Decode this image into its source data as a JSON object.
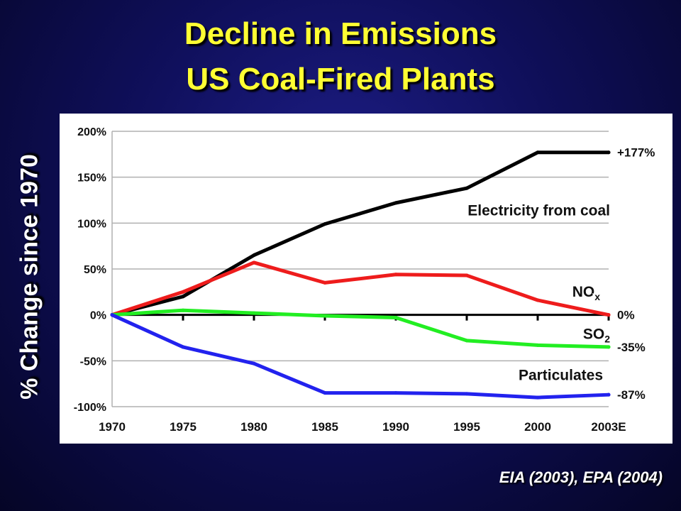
{
  "title_line1": "Decline in Emissions",
  "title_line2": "US Coal-Fired Plants",
  "y_axis_title": "% Change since 1970",
  "source": "EIA (2003), EPA (2004)",
  "chart_data": {
    "type": "line",
    "x": [
      "1970",
      "1975",
      "1980",
      "1985",
      "1990",
      "1995",
      "2000",
      "2003E"
    ],
    "yticks": [
      "200%",
      "150%",
      "100%",
      "50%",
      "0%",
      "-50%",
      "-100%"
    ],
    "ylim": [
      -100,
      200
    ],
    "grid": true,
    "series": [
      {
        "name": "Electricity from coal",
        "color": "#000000",
        "values": [
          0,
          20,
          65,
          99,
          122,
          138,
          177,
          177
        ],
        "end_label": "+177%"
      },
      {
        "name": "NOx",
        "name_main": "NO",
        "name_sub": "x",
        "color": "#ee1c1c",
        "values": [
          0,
          25,
          57,
          35,
          44,
          43,
          16,
          0
        ],
        "end_label": "0%"
      },
      {
        "name": "SO2",
        "name_main": "SO",
        "name_sub": "2",
        "color": "#22ee22",
        "values": [
          0,
          5,
          2,
          -1,
          -3,
          -28,
          -33,
          -35
        ],
        "end_label": "-35%"
      },
      {
        "name": "Particulates",
        "color": "#2222ee",
        "values": [
          0,
          -35,
          -53,
          -85,
          -85,
          -86,
          -90,
          -87
        ],
        "end_label": "-87%"
      }
    ]
  }
}
